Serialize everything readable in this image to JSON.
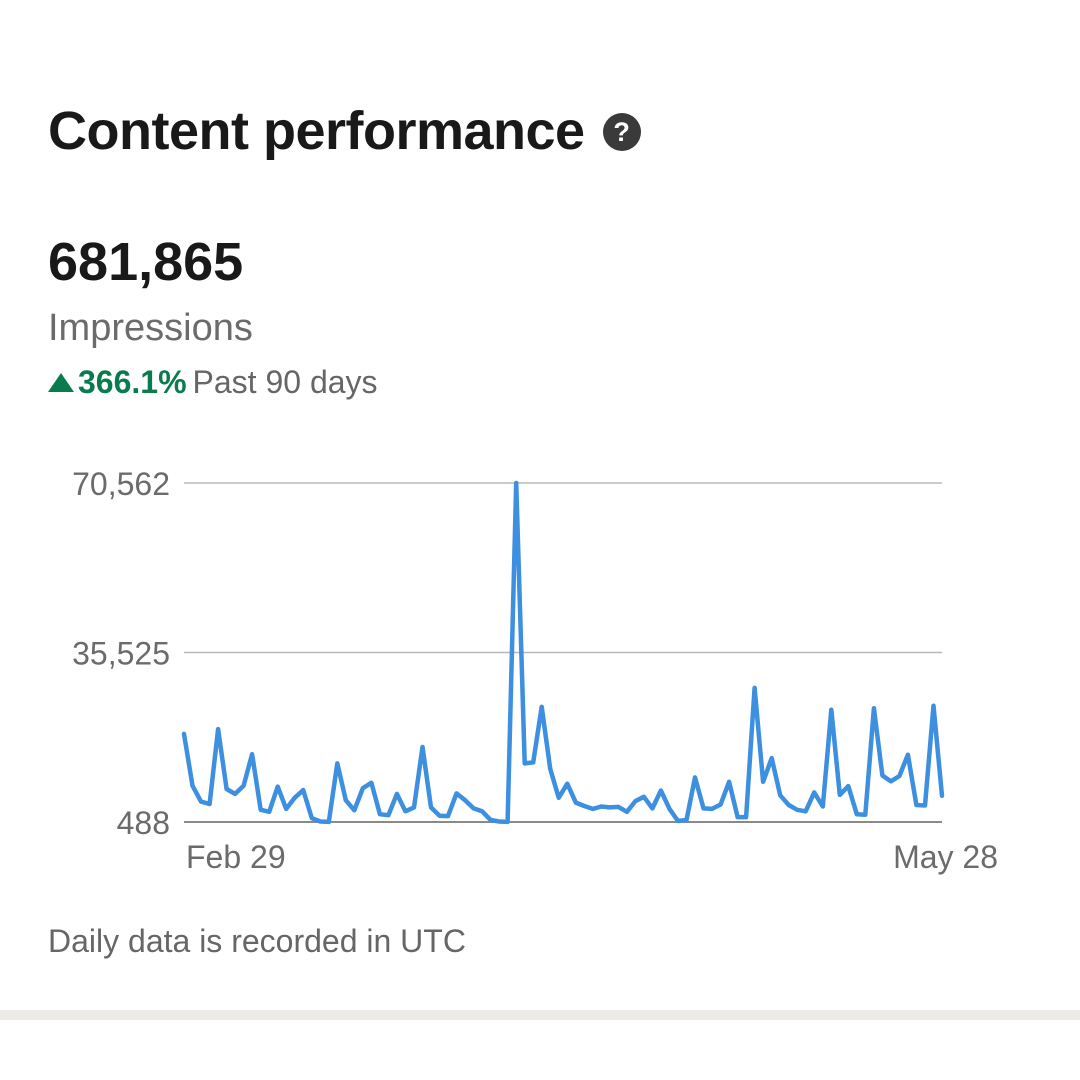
{
  "section": {
    "title": "Content performance",
    "help_icon": "question-mark-circle-icon",
    "help_glyph": "?"
  },
  "metric": {
    "value": "681,865",
    "label": "Impressions",
    "change_percent": "366.1%",
    "change_direction": "up",
    "period": "Past 90 days"
  },
  "colors": {
    "line": "#3d8fe0",
    "positive": "#0a7b4e",
    "gridline": "#b8b8b8"
  },
  "chart_data": {
    "type": "line",
    "ylabel_ticks": [
      "70,562",
      "35,525",
      "488"
    ],
    "yticks": [
      488,
      35525,
      70562
    ],
    "ylim": [
      488,
      70562
    ],
    "xlabel_start": "Feb 29",
    "xlabel_end": "May 28",
    "grid": true,
    "series": [
      {
        "values": [
          18700,
          8000,
          4700,
          4200,
          19700,
          7300,
          6300,
          8000,
          14500,
          3000,
          2600,
          7800,
          3200,
          5500,
          7100,
          1300,
          600,
          500,
          12600,
          5000,
          2900,
          7500,
          8600,
          2100,
          1900,
          6300,
          2700,
          3500,
          16000,
          3500,
          1800,
          1700,
          6400,
          5000,
          3300,
          2700,
          900,
          600,
          500,
          70562,
          12600,
          12800,
          24300,
          11500,
          5500,
          8400,
          4500,
          3800,
          3200,
          3700,
          3500,
          3600,
          2600,
          4800,
          5700,
          3300,
          7000,
          3200,
          700,
          900,
          9700,
          3300,
          3200,
          4100,
          8800,
          1500,
          1500,
          28200,
          8800,
          13700,
          6000,
          4000,
          3000,
          2700,
          6600,
          3700,
          23700,
          6100,
          7900,
          2100,
          2000,
          24000,
          10100,
          8900,
          10000,
          14400,
          4000,
          3900,
          24500,
          5900
        ]
      }
    ]
  },
  "footnote": "Daily data is recorded in UTC"
}
